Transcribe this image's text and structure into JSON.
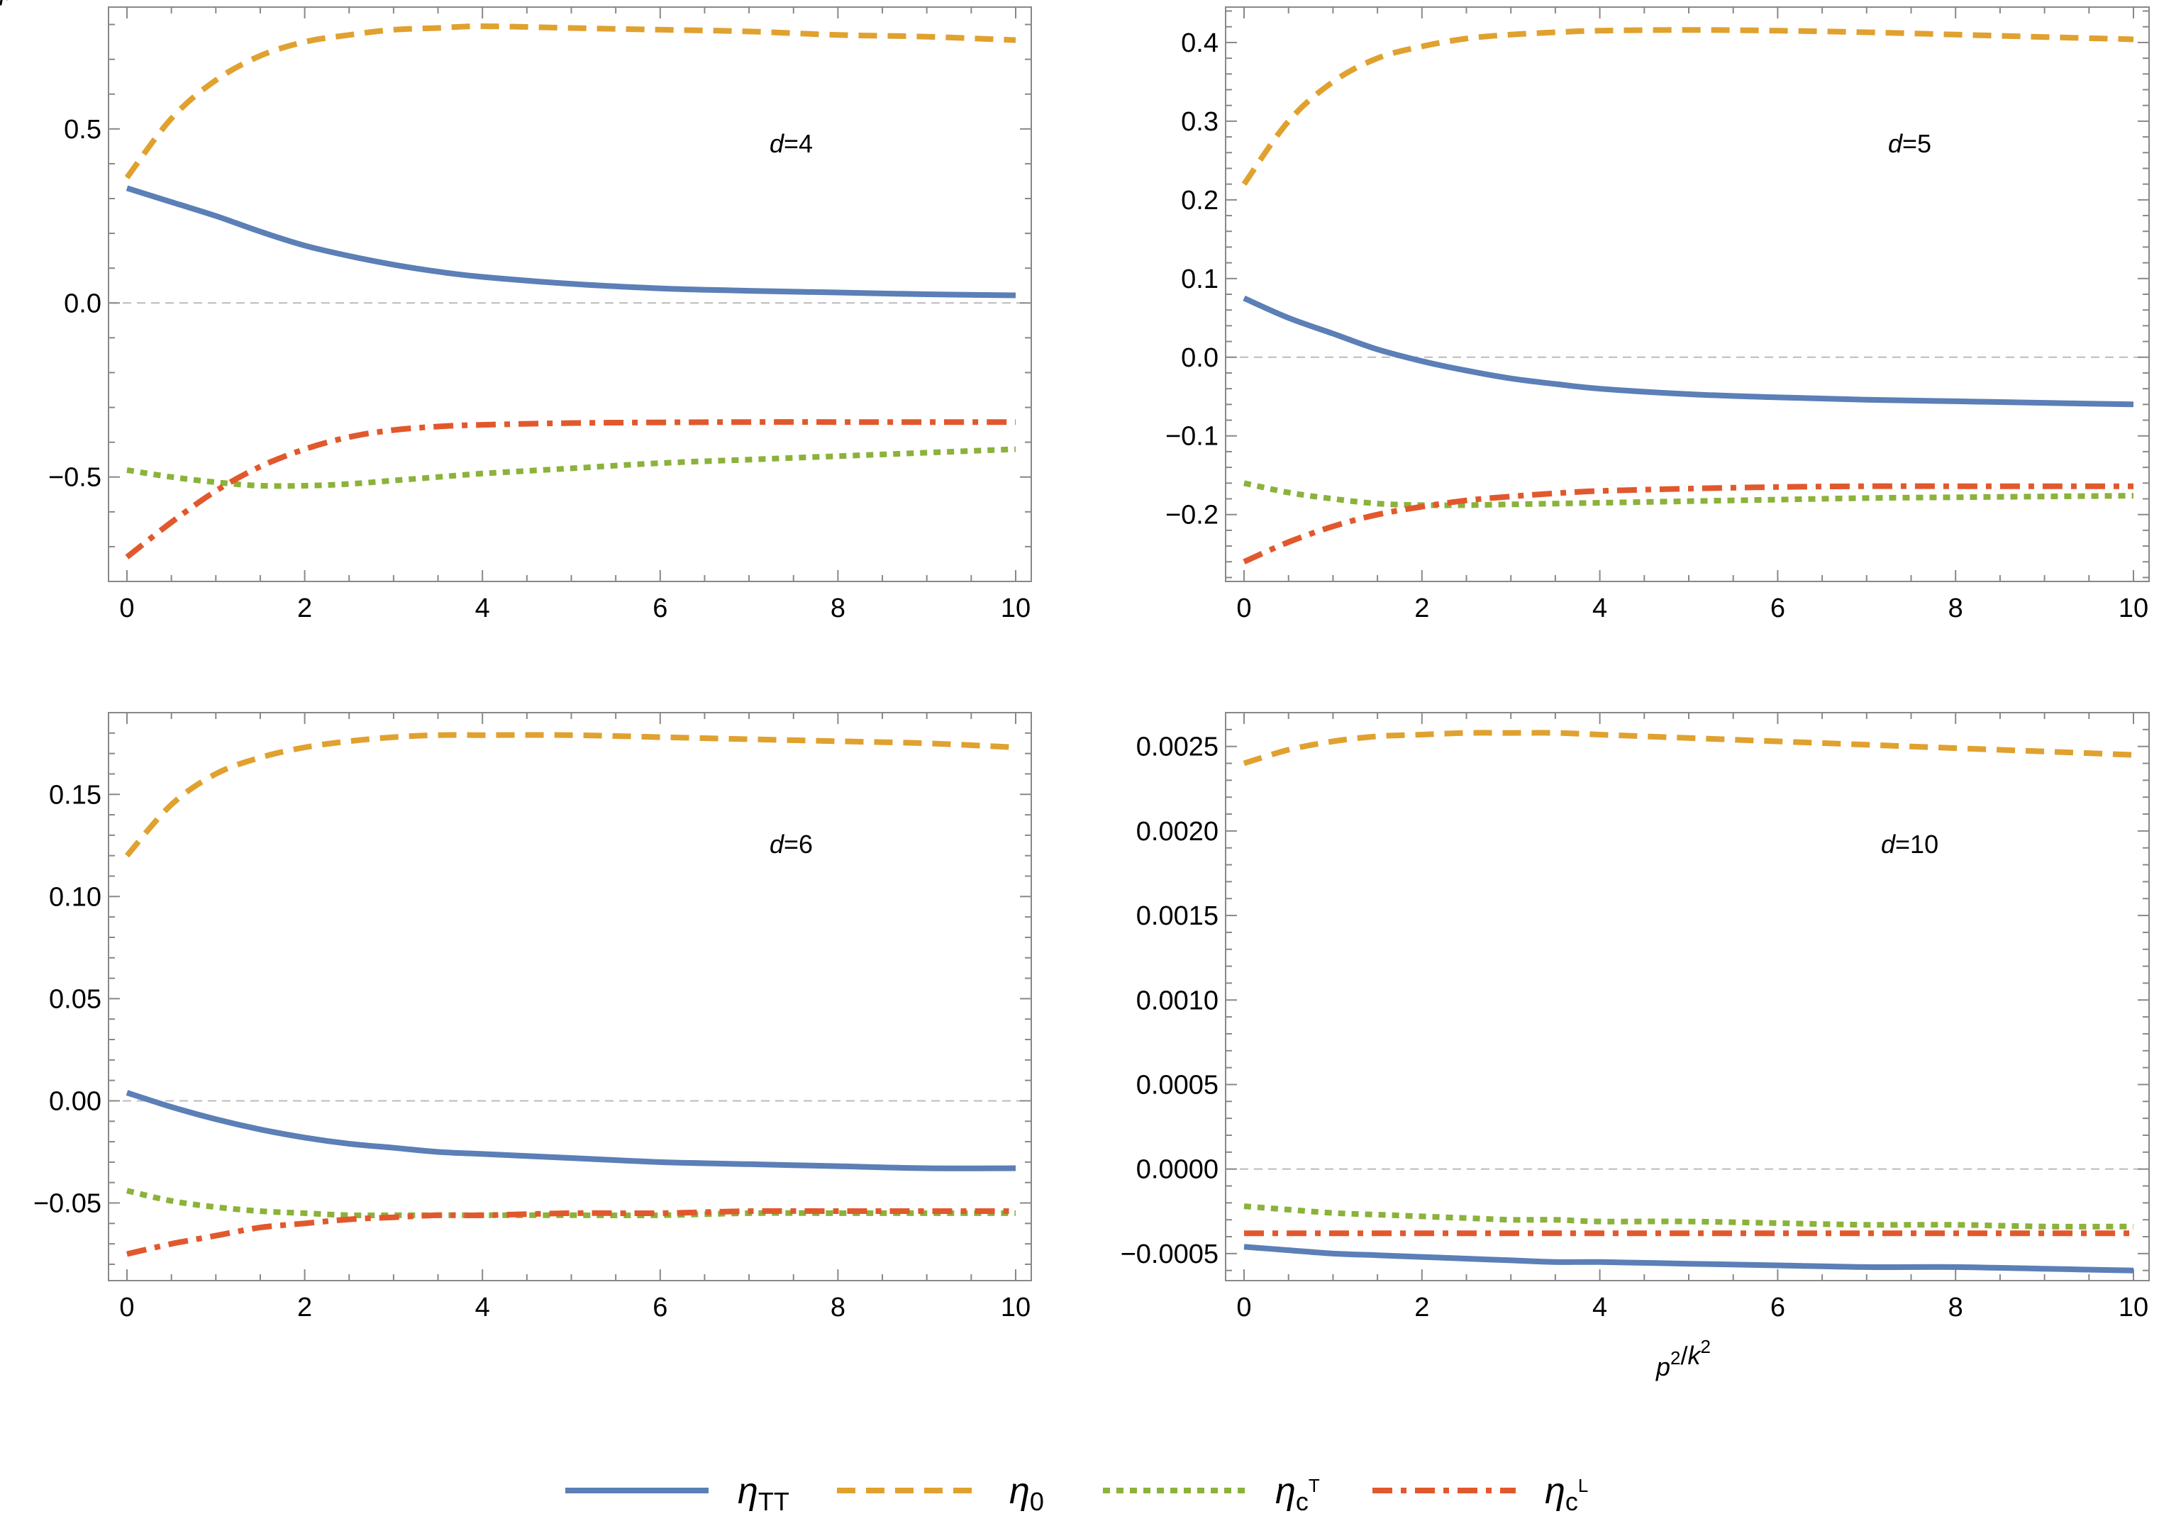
{
  "chart_data": [
    {
      "type": "line",
      "panel_label": "d=4",
      "x_label": "",
      "xlim": [
        0,
        10
      ],
      "ylim": [
        -0.8,
        0.85
      ],
      "x_ticks": [
        0,
        2,
        4,
        6,
        8,
        10
      ],
      "x_tick_labels": [
        "0",
        "2",
        "4",
        "6",
        "8",
        "10"
      ],
      "y_ticks": [
        -0.5,
        0.0,
        0.5
      ],
      "y_tick_labels": [
        "−0.5",
        "0.0",
        "0.5"
      ],
      "zero_line": true,
      "series": [
        {
          "key": "eta_TT",
          "x": [
            0,
            0.5,
            1,
            1.5,
            2,
            2.5,
            3,
            3.5,
            4,
            5,
            6,
            7,
            8,
            9,
            10
          ],
          "y": [
            0.33,
            0.29,
            0.25,
            0.205,
            0.165,
            0.135,
            0.11,
            0.09,
            0.075,
            0.055,
            0.042,
            0.035,
            0.03,
            0.025,
            0.022
          ]
        },
        {
          "key": "eta_0",
          "x": [
            0,
            0.5,
            1,
            1.5,
            2,
            2.5,
            3,
            3.5,
            4,
            5,
            6,
            7,
            8,
            9,
            10
          ],
          "y": [
            0.36,
            0.53,
            0.64,
            0.71,
            0.75,
            0.77,
            0.785,
            0.79,
            0.795,
            0.79,
            0.785,
            0.78,
            0.77,
            0.765,
            0.755
          ]
        },
        {
          "key": "eta_cT",
          "x": [
            0,
            0.5,
            1,
            1.5,
            2,
            2.5,
            3,
            3.5,
            4,
            5,
            6,
            7,
            8,
            9,
            10
          ],
          "y": [
            -0.48,
            -0.5,
            -0.515,
            -0.525,
            -0.525,
            -0.52,
            -0.51,
            -0.5,
            -0.49,
            -0.475,
            -0.46,
            -0.45,
            -0.44,
            -0.43,
            -0.42
          ]
        },
        {
          "key": "eta_cL",
          "x": [
            0,
            0.5,
            1,
            1.5,
            2,
            2.5,
            3,
            3.5,
            4,
            5,
            6,
            7,
            8,
            9,
            10
          ],
          "y": [
            -0.73,
            -0.63,
            -0.54,
            -0.47,
            -0.42,
            -0.385,
            -0.365,
            -0.355,
            -0.35,
            -0.345,
            -0.343,
            -0.342,
            -0.342,
            -0.342,
            -0.342
          ]
        }
      ]
    },
    {
      "type": "line",
      "panel_label": "d=5",
      "x_label": "",
      "xlim": [
        0,
        10
      ],
      "ylim": [
        -0.285,
        0.445
      ],
      "x_ticks": [
        0,
        2,
        4,
        6,
        8,
        10
      ],
      "x_tick_labels": [
        "0",
        "2",
        "4",
        "6",
        "8",
        "10"
      ],
      "y_ticks": [
        -0.2,
        -0.1,
        0.0,
        0.1,
        0.2,
        0.3,
        0.4
      ],
      "y_tick_labels": [
        "−0.2",
        "−0.1",
        "0.0",
        "0.1",
        "0.2",
        "0.3",
        "0.4"
      ],
      "zero_line": true,
      "series": [
        {
          "key": "eta_TT",
          "x": [
            0,
            0.5,
            1,
            1.5,
            2,
            2.5,
            3,
            3.5,
            4,
            5,
            6,
            7,
            8,
            9,
            10
          ],
          "y": [
            0.075,
            0.05,
            0.03,
            0.01,
            -0.005,
            -0.017,
            -0.027,
            -0.034,
            -0.04,
            -0.047,
            -0.051,
            -0.054,
            -0.056,
            -0.058,
            -0.06
          ]
        },
        {
          "key": "eta_0",
          "x": [
            0,
            0.5,
            1,
            1.5,
            2,
            2.5,
            3,
            3.5,
            4,
            5,
            6,
            7,
            8,
            9,
            10
          ],
          "y": [
            0.22,
            0.3,
            0.35,
            0.38,
            0.395,
            0.405,
            0.41,
            0.413,
            0.415,
            0.416,
            0.415,
            0.413,
            0.41,
            0.407,
            0.404
          ]
        },
        {
          "key": "eta_cT",
          "x": [
            0,
            0.5,
            1,
            1.5,
            2,
            2.5,
            3,
            3.5,
            4,
            5,
            6,
            7,
            8,
            9,
            10
          ],
          "y": [
            -0.16,
            -0.172,
            -0.18,
            -0.186,
            -0.188,
            -0.188,
            -0.187,
            -0.186,
            -0.185,
            -0.183,
            -0.181,
            -0.179,
            -0.178,
            -0.177,
            -0.176
          ]
        },
        {
          "key": "eta_cL",
          "x": [
            0,
            0.5,
            1,
            1.5,
            2,
            2.5,
            3,
            3.5,
            4,
            5,
            6,
            7,
            8,
            9,
            10
          ],
          "y": [
            -0.26,
            -0.235,
            -0.215,
            -0.2,
            -0.19,
            -0.182,
            -0.177,
            -0.173,
            -0.17,
            -0.167,
            -0.165,
            -0.164,
            -0.164,
            -0.164,
            -0.164
          ]
        }
      ]
    },
    {
      "type": "line",
      "panel_label": "d=6",
      "x_label": "p²/k²",
      "xlim": [
        0,
        10
      ],
      "ylim": [
        -0.088,
        0.19
      ],
      "x_ticks": [
        0,
        2,
        4,
        6,
        8,
        10
      ],
      "x_tick_labels": [
        "0",
        "2",
        "4",
        "6",
        "8",
        "10"
      ],
      "y_ticks": [
        -0.05,
        0.0,
        0.05,
        0.1,
        0.15
      ],
      "y_tick_labels": [
        "−0.05",
        "0.00",
        "0.05",
        "0.10",
        "0.15"
      ],
      "zero_line": true,
      "series": [
        {
          "key": "eta_TT",
          "x": [
            0,
            0.5,
            1,
            1.5,
            2,
            2.5,
            3,
            3.5,
            4,
            5,
            6,
            7,
            8,
            9,
            10
          ],
          "y": [
            0.004,
            -0.003,
            -0.009,
            -0.014,
            -0.018,
            -0.021,
            -0.023,
            -0.025,
            -0.026,
            -0.028,
            -0.03,
            -0.031,
            -0.032,
            -0.033,
            -0.033
          ]
        },
        {
          "key": "eta_0",
          "x": [
            0,
            0.5,
            1,
            1.5,
            2,
            2.5,
            3,
            3.5,
            4,
            5,
            6,
            7,
            8,
            9,
            10
          ],
          "y": [
            0.12,
            0.145,
            0.16,
            0.168,
            0.173,
            0.176,
            0.178,
            0.179,
            0.179,
            0.179,
            0.178,
            0.177,
            0.176,
            0.175,
            0.173
          ]
        },
        {
          "key": "eta_cT",
          "x": [
            0,
            0.5,
            1,
            1.5,
            2,
            2.5,
            3,
            3.5,
            4,
            5,
            6,
            7,
            8,
            9,
            10
          ],
          "y": [
            -0.044,
            -0.049,
            -0.052,
            -0.054,
            -0.055,
            -0.056,
            -0.056,
            -0.056,
            -0.056,
            -0.056,
            -0.056,
            -0.055,
            -0.055,
            -0.055,
            -0.055
          ]
        },
        {
          "key": "eta_cL",
          "x": [
            0,
            0.5,
            1,
            1.5,
            2,
            2.5,
            3,
            3.5,
            4,
            5,
            6,
            7,
            8,
            9,
            10
          ],
          "y": [
            -0.075,
            -0.07,
            -0.066,
            -0.062,
            -0.06,
            -0.058,
            -0.057,
            -0.056,
            -0.056,
            -0.055,
            -0.055,
            -0.054,
            -0.054,
            -0.054,
            -0.054
          ]
        }
      ]
    },
    {
      "type": "line",
      "panel_label": "d=10",
      "x_label": "p²/k²",
      "xlim": [
        0,
        10
      ],
      "ylim": [
        -0.00066,
        0.0027
      ],
      "x_ticks": [
        0,
        2,
        4,
        6,
        8,
        10
      ],
      "x_tick_labels": [
        "0",
        "2",
        "4",
        "6",
        "8",
        "10"
      ],
      "y_ticks": [
        -0.0005,
        0.0,
        0.0005,
        0.001,
        0.0015,
        0.002,
        0.0025
      ],
      "y_tick_labels": [
        "−0.0005",
        "0.0000",
        "0.0005",
        "0.0010",
        "0.0015",
        "0.0020",
        "0.0025"
      ],
      "zero_line": true,
      "series": [
        {
          "key": "eta_TT",
          "x": [
            0,
            0.5,
            1,
            1.5,
            2,
            2.5,
            3,
            3.5,
            4,
            5,
            6,
            7,
            8,
            9,
            10
          ],
          "y": [
            -0.00046,
            -0.00048,
            -0.0005,
            -0.00051,
            -0.00052,
            -0.00053,
            -0.00054,
            -0.00055,
            -0.00055,
            -0.00056,
            -0.00057,
            -0.00058,
            -0.00058,
            -0.00059,
            -0.0006
          ]
        },
        {
          "key": "eta_0",
          "x": [
            0,
            0.5,
            1,
            1.5,
            2,
            2.5,
            3,
            3.5,
            4,
            5,
            6,
            7,
            8,
            9,
            10
          ],
          "y": [
            0.0024,
            0.00248,
            0.00253,
            0.00256,
            0.00257,
            0.00258,
            0.00258,
            0.00258,
            0.00257,
            0.00255,
            0.00253,
            0.00251,
            0.00249,
            0.00247,
            0.00245
          ]
        },
        {
          "key": "eta_cT",
          "x": [
            0,
            0.5,
            1,
            1.5,
            2,
            2.5,
            3,
            3.5,
            4,
            5,
            6,
            7,
            8,
            9,
            10
          ],
          "y": [
            -0.00022,
            -0.00024,
            -0.00026,
            -0.00027,
            -0.00028,
            -0.00029,
            -0.0003,
            -0.0003,
            -0.00031,
            -0.00031,
            -0.00032,
            -0.00033,
            -0.00033,
            -0.00034,
            -0.00034
          ]
        },
        {
          "key": "eta_cL",
          "x": [
            0,
            0.5,
            1,
            1.5,
            2,
            2.5,
            3,
            3.5,
            4,
            5,
            6,
            7,
            8,
            9,
            10
          ],
          "y": [
            -0.00038,
            -0.00038,
            -0.00038,
            -0.00038,
            -0.00038,
            -0.00038,
            -0.00038,
            -0.00038,
            -0.00038,
            -0.00038,
            -0.00038,
            -0.00038,
            -0.00038,
            -0.00038,
            -0.00038
          ]
        }
      ]
    }
  ],
  "styles": {
    "eta_TT": {
      "color": "#5b7fb6",
      "dash": "solid"
    },
    "eta_0": {
      "color": "#e0a12f",
      "dash": "dashed"
    },
    "eta_cT": {
      "color": "#8bb23a",
      "dash": "dotted"
    },
    "eta_cL": {
      "color": "#e2582d",
      "dash": "dashdot"
    }
  },
  "legend": {
    "placement": "bottom-center",
    "items": [
      {
        "key": "eta_TT",
        "sym": "η",
        "sub": "TT",
        "sup": ""
      },
      {
        "key": "eta_0",
        "sym": "η",
        "sub": "0",
        "sup": ""
      },
      {
        "key": "eta_cT",
        "sym": "η",
        "sub": "c",
        "sup": "T"
      },
      {
        "key": "eta_cL",
        "sym": "η",
        "sub": "c",
        "sup": "L"
      }
    ]
  }
}
